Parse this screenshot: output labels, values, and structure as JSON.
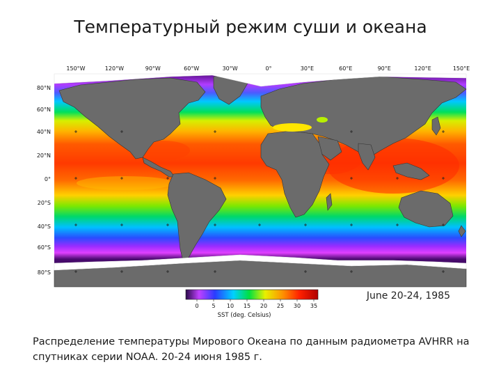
{
  "slide": {
    "title": "Температурный режим суши и океана",
    "caption": "Распределение температуры Мирового Океана по данным радиометра AVHRR на спутниках серии NOAA. 20-24 июня 1985 г."
  },
  "map": {
    "longitude_labels": [
      "150°W",
      "120°W",
      "90°W",
      "60°W",
      "30°W",
      "0°",
      "30°E",
      "60°E",
      "90°E",
      "120°E",
      "150°E"
    ],
    "latitude_labels": [
      "80°N",
      "60°N",
      "40°N",
      "20°N",
      "0°",
      "20°S",
      "40°S",
      "60°S",
      "80°S"
    ],
    "date_label": "June 20-24, 1985",
    "colorbar": {
      "title": "SST (deg. Celsius)",
      "ticks": [
        "0",
        "5",
        "10",
        "15",
        "20",
        "25",
        "30",
        "35"
      ]
    },
    "colors": {
      "land": "#6b6b6b",
      "ice": "#ffffff",
      "ocean_cold": "#3a0a5e",
      "ocean_warm": "#ff2a00"
    }
  }
}
